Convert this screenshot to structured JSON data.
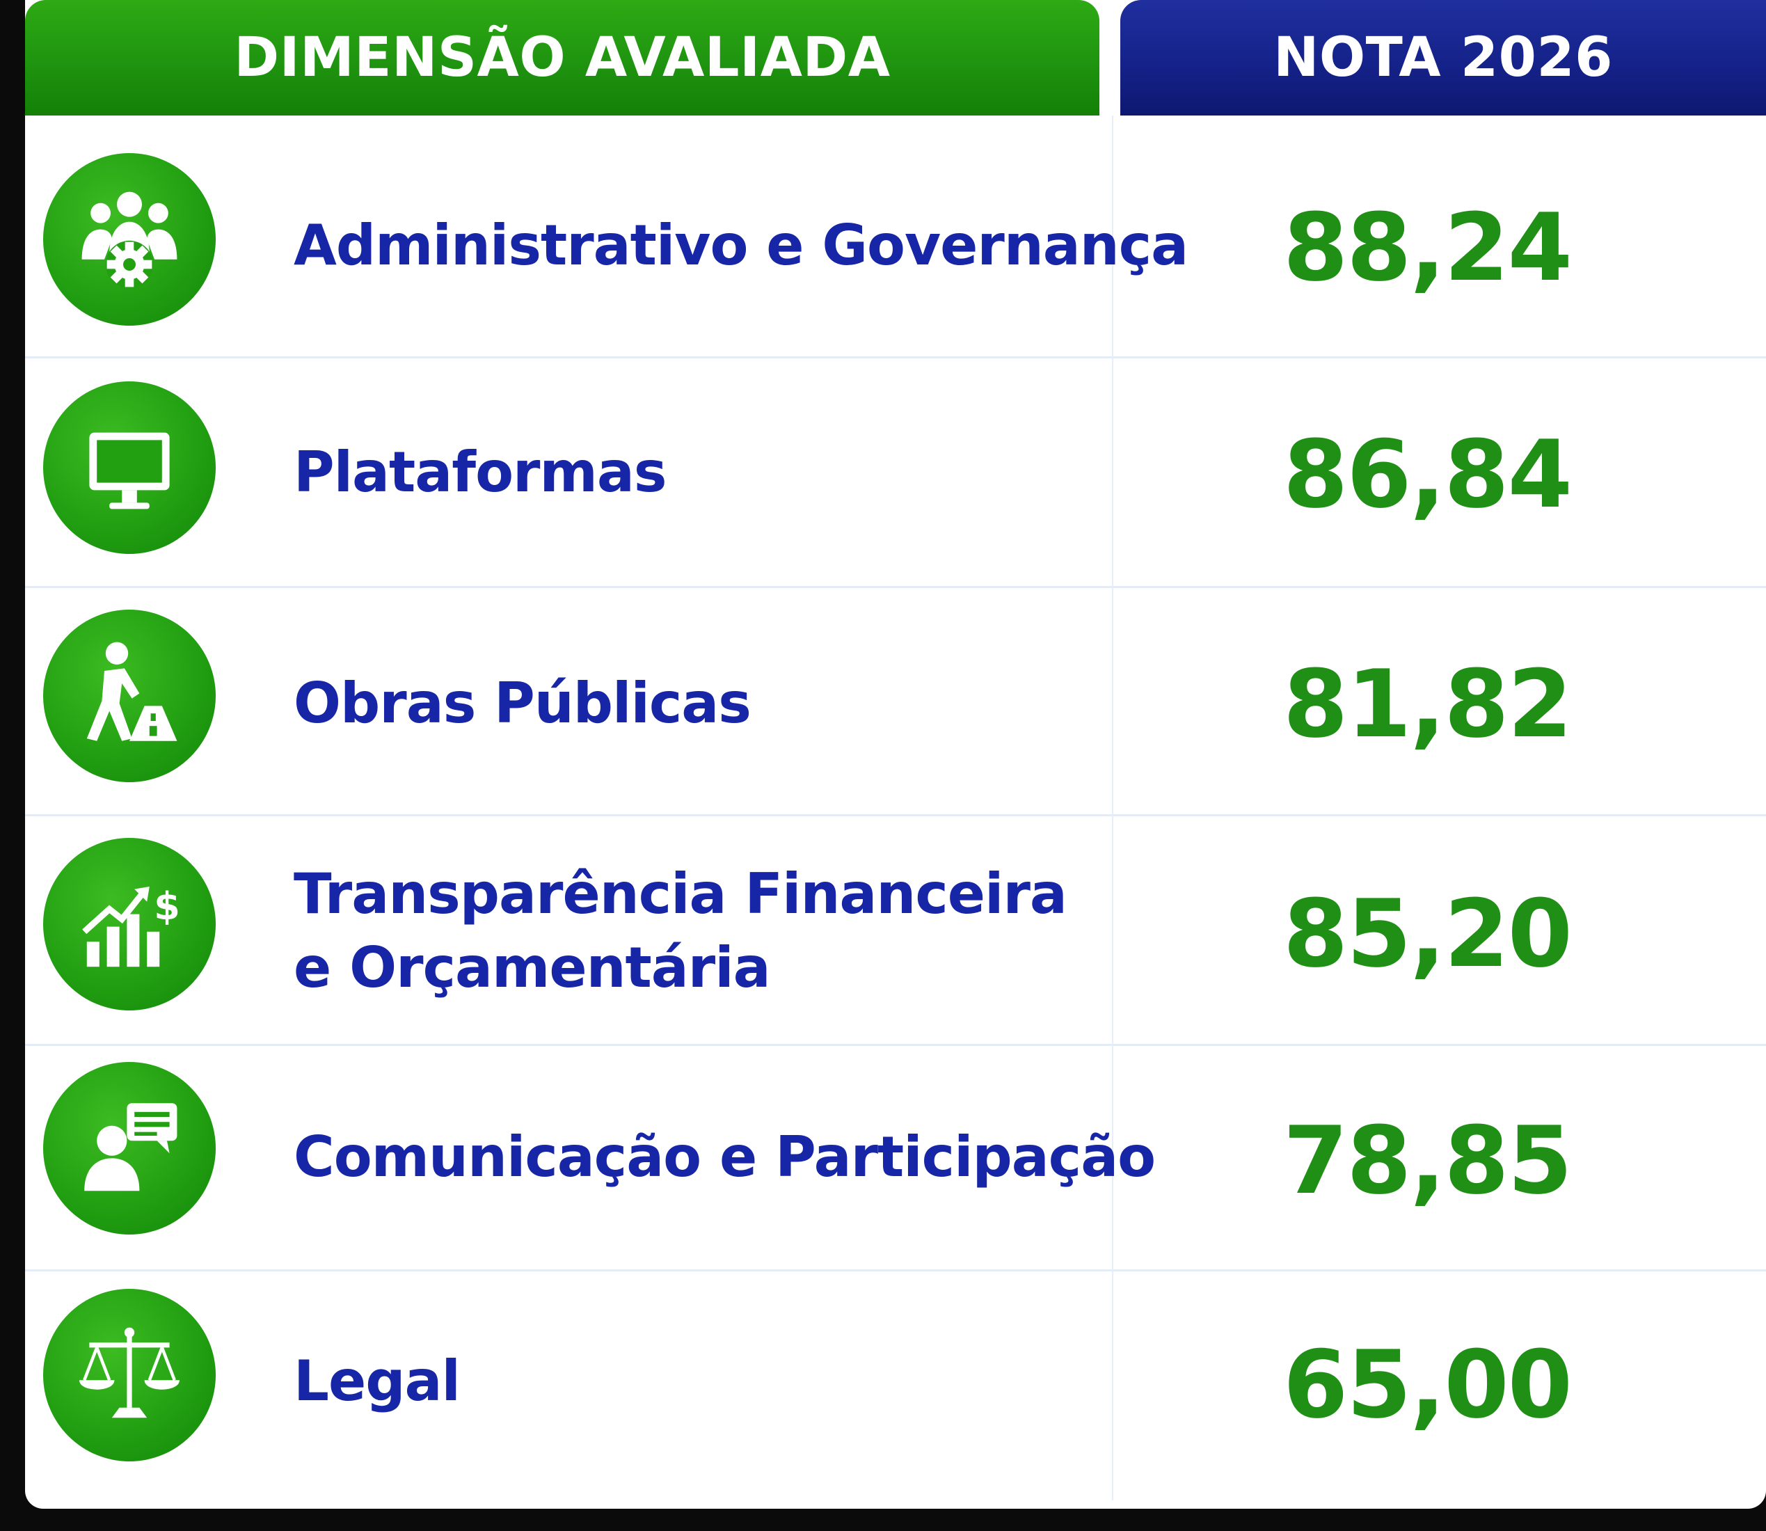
{
  "header": {
    "dimension_label": "DIMENSÃO AVALIADA",
    "score_label": "NOTA 2026"
  },
  "rows": [
    {
      "icon": "people-gear-icon",
      "label_lines": [
        "Administrativo e Governança"
      ],
      "score": "88,24"
    },
    {
      "icon": "monitor-icon",
      "label_lines": [
        "Plataformas"
      ],
      "score": "86,84"
    },
    {
      "icon": "road-worker-icon",
      "label_lines": [
        "Obras Públicas"
      ],
      "score": "81,82"
    },
    {
      "icon": "finance-chart-icon",
      "label_lines": [
        "Transparência Financeira",
        "e Orçamentária"
      ],
      "score": "85,20"
    },
    {
      "icon": "chat-person-icon",
      "label_lines": [
        "Comunicação e Participação"
      ],
      "score": "78,85"
    },
    {
      "icon": "scales-icon",
      "label_lines": [
        "Legal"
      ],
      "score": "65,00"
    }
  ],
  "colors": {
    "header_green": "#1f9410",
    "header_blue": "#15228a",
    "label_blue": "#1726a6",
    "score_green": "#1f8f16",
    "icon_green": "#22a012"
  }
}
